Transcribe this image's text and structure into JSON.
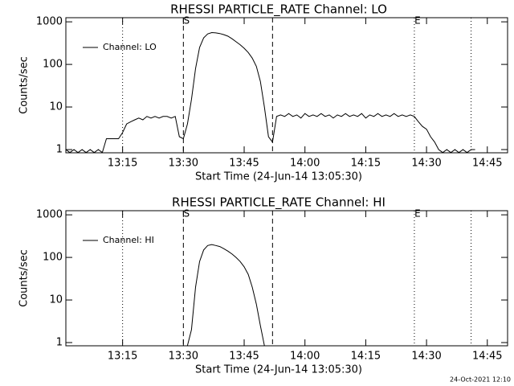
{
  "chart_data": [
    {
      "type": "line",
      "title": "RHESSI PARTICLE_RATE Channel: LO",
      "xlabel": "Start Time (24-Jun-14 13:05:30)",
      "ylabel": "Counts/sec",
      "xlim": [
        "13:01",
        "14:50"
      ],
      "xticks": [
        "13:15",
        "13:30",
        "13:45",
        "14:00",
        "14:15",
        "14:30",
        "14:45"
      ],
      "ylim": [
        0.84,
        1250
      ],
      "yticks": [
        1,
        10,
        100,
        1000
      ],
      "ylog": true,
      "legend": "upper left",
      "vlines": [
        {
          "x": "13:15",
          "style": "dotted"
        },
        {
          "x": "13:30",
          "style": "dashed"
        },
        {
          "x": "13:52",
          "style": "dashed"
        },
        {
          "x": "14:27",
          "style": "dotted"
        },
        {
          "x": "14:41",
          "style": "dotted"
        }
      ],
      "markers": [
        {
          "text": "S",
          "x": "13:30"
        },
        {
          "text": "E",
          "x": "14:27"
        }
      ],
      "x": [
        "13:01",
        "13:02",
        "13:03",
        "13:04",
        "13:05",
        "13:06",
        "13:07",
        "13:08",
        "13:09",
        "13:10",
        "13:11",
        "13:12",
        "13:13",
        "13:14",
        "13:15",
        "13:16",
        "13:17",
        "13:18",
        "13:19",
        "13:20",
        "13:21",
        "13:22",
        "13:23",
        "13:24",
        "13:25",
        "13:26",
        "13:27",
        "13:28",
        "13:29",
        "13:30",
        "13:31",
        "13:32",
        "13:33",
        "13:34",
        "13:35",
        "13:36",
        "13:37",
        "13:38",
        "13:39",
        "13:40",
        "13:41",
        "13:42",
        "13:43",
        "13:44",
        "13:45",
        "13:46",
        "13:47",
        "13:48",
        "13:49",
        "13:50",
        "13:51",
        "13:52",
        "13:53",
        "13:54",
        "13:55",
        "13:56",
        "13:57",
        "13:58",
        "13:59",
        "14:00",
        "14:01",
        "14:02",
        "14:03",
        "14:04",
        "14:05",
        "14:06",
        "14:07",
        "14:08",
        "14:09",
        "14:10",
        "14:11",
        "14:12",
        "14:13",
        "14:14",
        "14:15",
        "14:16",
        "14:17",
        "14:18",
        "14:19",
        "14:20",
        "14:21",
        "14:22",
        "14:23",
        "14:24",
        "14:25",
        "14:26",
        "14:27",
        "14:28",
        "14:29",
        "14:30",
        "14:31",
        "14:32",
        "14:33",
        "14:34",
        "14:35",
        "14:36",
        "14:37",
        "14:38",
        "14:39",
        "14:40",
        "14:41",
        "14:42"
      ],
      "series": [
        {
          "name": "Channel: LO",
          "color": "#000000",
          "values": [
            1,
            0.85,
            1,
            0.85,
            1,
            0.85,
            1,
            0.85,
            1,
            0.85,
            1.8,
            1.8,
            1.8,
            1.8,
            2.5,
            4,
            4.5,
            5,
            5.5,
            5,
            6,
            5.5,
            6,
            5.5,
            6,
            6,
            5.5,
            6,
            2,
            1.8,
            4,
            15,
            80,
            250,
            420,
            520,
            560,
            550,
            530,
            500,
            460,
            400,
            340,
            290,
            240,
            190,
            140,
            90,
            40,
            10,
            2,
            1.5,
            6,
            6.5,
            6,
            7,
            6,
            6.5,
            5.5,
            7,
            6,
            6.5,
            6,
            7,
            6,
            6.5,
            5.5,
            6.5,
            6,
            7,
            6,
            6.5,
            6,
            7,
            5.5,
            6.5,
            6,
            7,
            6,
            6.5,
            6,
            7,
            6,
            6.5,
            6,
            6.5,
            6,
            4.5,
            3.5,
            3,
            2,
            1.5,
            1,
            0.85,
            1,
            0.85,
            1,
            0.85,
            1,
            0.85,
            1,
            1
          ]
        }
      ]
    },
    {
      "type": "line",
      "title": "RHESSI PARTICLE_RATE Channel: HI",
      "xlabel": "Start Time (24-Jun-14 13:05:30)",
      "ylabel": "Counts/sec",
      "xlim": [
        "13:01",
        "14:50"
      ],
      "xticks": [
        "13:15",
        "13:30",
        "13:45",
        "14:00",
        "14:15",
        "14:30",
        "14:45"
      ],
      "ylim": [
        0.84,
        1250
      ],
      "yticks": [
        1,
        10,
        100,
        1000
      ],
      "ylog": true,
      "legend": "upper left",
      "vlines": [
        {
          "x": "13:15",
          "style": "dotted"
        },
        {
          "x": "13:30",
          "style": "dashed"
        },
        {
          "x": "13:52",
          "style": "dashed"
        },
        {
          "x": "14:27",
          "style": "dotted"
        },
        {
          "x": "14:41",
          "style": "dotted"
        }
      ],
      "markers": [
        {
          "text": "S",
          "x": "13:30"
        },
        {
          "text": "E",
          "x": "14:27"
        }
      ],
      "x": [
        "13:31",
        "13:32",
        "13:33",
        "13:34",
        "13:35",
        "13:36",
        "13:37",
        "13:38",
        "13:39",
        "13:40",
        "13:41",
        "13:42",
        "13:43",
        "13:44",
        "13:45",
        "13:46",
        "13:47",
        "13:48",
        "13:49",
        "13:50"
      ],
      "series": [
        {
          "name": "Channel: HI",
          "color": "#000000",
          "values": [
            0.85,
            2,
            20,
            80,
            150,
            190,
            200,
            190,
            180,
            160,
            140,
            120,
            100,
            80,
            60,
            40,
            20,
            8,
            2.5,
            0.85
          ]
        }
      ]
    }
  ],
  "footer": "24-Oct-2021 12:10"
}
